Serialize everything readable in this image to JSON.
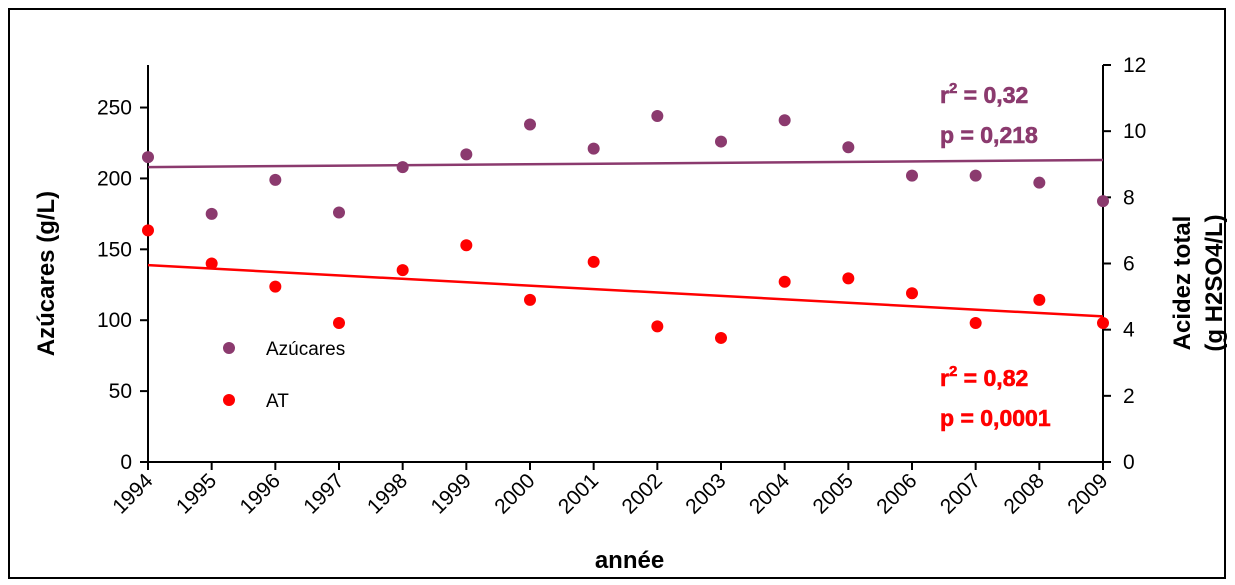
{
  "chart_data": {
    "type": "scatter",
    "x": [
      1994,
      1995,
      1996,
      1997,
      1998,
      1999,
      2000,
      2001,
      2002,
      2003,
      2004,
      2005,
      2006,
      2007,
      2008,
      2009
    ],
    "xlabel": "année",
    "ylabel": "Azúcares (g/L)",
    "ylabel_right": [
      "Acidez total",
      "(g H2SO4/L)"
    ],
    "ylim": [
      0,
      280
    ],
    "yticks": [
      0,
      50,
      100,
      150,
      200,
      250
    ],
    "ylim_right": [
      0,
      12
    ],
    "yticks_right": [
      0,
      2,
      4,
      6,
      8,
      10,
      12
    ],
    "legend_position": "left",
    "series": [
      {
        "name": "Azúcares",
        "axis": "left",
        "color": "#8B3A6E",
        "values": [
          215,
          175,
          199,
          176,
          208,
          217,
          238,
          221,
          244,
          226,
          241,
          222,
          202,
          202,
          197,
          184
        ],
        "trend": {
          "start": 208,
          "end": 213
        },
        "stats": [
          "r² = 0,32",
          "p = 0,218"
        ]
      },
      {
        "name": "AT",
        "axis": "right",
        "color": "#FF0000",
        "values": [
          7.0,
          6.0,
          5.3,
          4.2,
          5.8,
          6.55,
          4.9,
          6.05,
          4.1,
          3.75,
          5.45,
          5.55,
          5.1,
          4.2,
          4.9,
          4.2
        ],
        "trend": {
          "start": 5.95,
          "end": 4.4
        },
        "stats": [
          "r² = 0,82",
          "p = 0,0001"
        ]
      }
    ]
  }
}
